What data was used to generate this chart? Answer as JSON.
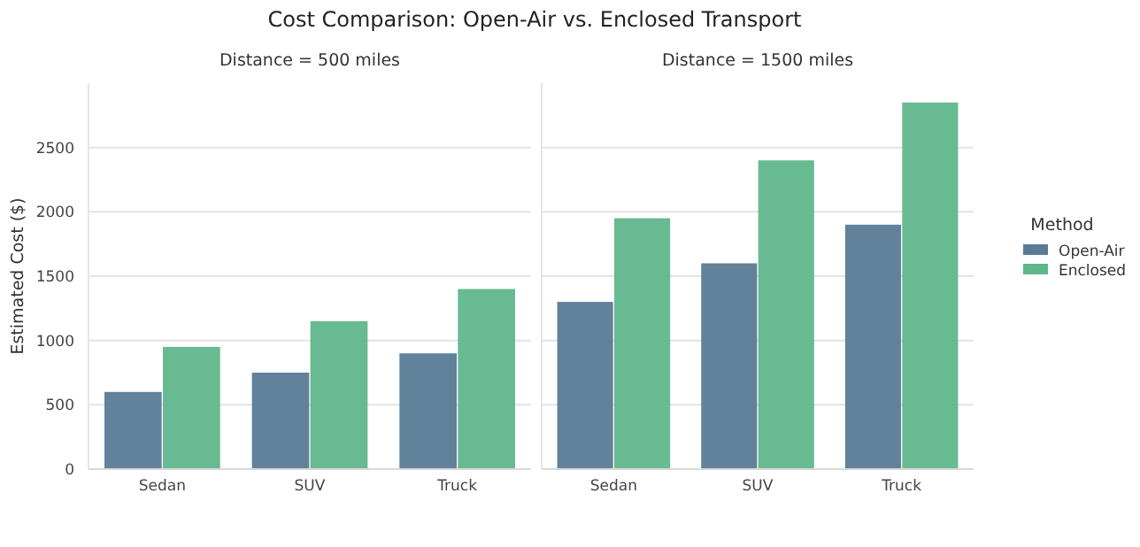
{
  "chart_data": [
    {
      "type": "bar",
      "title": "Cost Comparison: Open-Air vs. Enclosed Transport",
      "subtitle": "Distance = 500 miles",
      "ylabel": "Estimated Cost ($)",
      "categories": [
        "Sedan",
        "SUV",
        "Truck"
      ],
      "series": [
        {
          "color": "#5a7b97",
          "values": [
            600,
            750,
            900
          ]
        },
        {
          "color": "#5fb68b",
          "values": [
            950,
            1150,
            1400
          ]
        }
      ],
      "ylim": [
        0,
        3000
      ],
      "yticks": [
        0,
        500,
        1000,
        1500,
        2000,
        2500
      ],
      "grid": "y"
    },
    {
      "type": "bar",
      "subtitle": "Distance = 1500 miles",
      "legend_title": "Method",
      "categories": [
        "Sedan",
        "SUV",
        "Truck"
      ],
      "series": [
        {
          "name": "Open-Air",
          "color": "#5a7b97",
          "values": [
            1300,
            1600,
            1900
          ]
        },
        {
          "name": "Enclosed",
          "color": "#5fb68b",
          "values": [
            1950,
            2400,
            2850
          ]
        }
      ],
      "ylim": [
        0,
        3000
      ],
      "yticks": [
        0,
        500,
        1000,
        1500,
        2000,
        2500
      ],
      "grid": "y",
      "tick_labels": "x",
      "legend": "right"
    }
  ]
}
